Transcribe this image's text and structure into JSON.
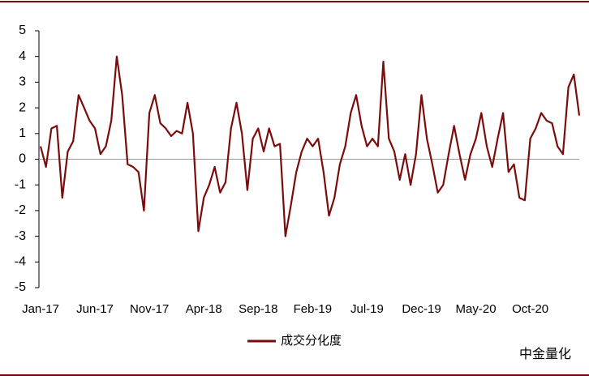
{
  "chart_data": {
    "type": "line",
    "categories": [
      "Jan-17",
      null,
      null,
      null,
      null,
      null,
      null,
      null,
      null,
      null,
      "Jun-17",
      null,
      null,
      null,
      null,
      null,
      null,
      null,
      null,
      null,
      "Nov-17",
      null,
      null,
      null,
      null,
      null,
      null,
      null,
      null,
      null,
      "Apr-18",
      null,
      null,
      null,
      null,
      null,
      null,
      null,
      null,
      null,
      "Sep-18",
      null,
      null,
      null,
      null,
      null,
      null,
      null,
      null,
      null,
      "Feb-19",
      null,
      null,
      null,
      null,
      null,
      null,
      null,
      null,
      null,
      "Jul-19",
      null,
      null,
      null,
      null,
      null,
      null,
      null,
      null,
      null,
      "Dec-19",
      null,
      null,
      null,
      null,
      null,
      null,
      null,
      null,
      null,
      "May-20",
      null,
      null,
      null,
      null,
      null,
      null,
      null,
      null,
      null,
      "Oct-20",
      null,
      null,
      null,
      null,
      null,
      null,
      null,
      null,
      null
    ],
    "series": [
      {
        "name": "成交分化度",
        "color": "#7b0c0c",
        "values": [
          0.5,
          -0.3,
          1.2,
          1.3,
          -1.5,
          0.3,
          0.7,
          2.5,
          2.0,
          1.5,
          1.2,
          0.2,
          0.5,
          1.5,
          4.0,
          2.5,
          -0.2,
          -0.3,
          -0.5,
          -2.0,
          1.8,
          2.5,
          1.4,
          1.2,
          0.9,
          1.1,
          1.0,
          2.2,
          1.0,
          -2.8,
          -1.5,
          -1.0,
          -0.3,
          -1.3,
          -0.9,
          1.2,
          2.2,
          1.0,
          -1.2,
          0.8,
          1.2,
          0.3,
          1.2,
          0.5,
          0.6,
          -3.0,
          -1.8,
          -0.5,
          0.3,
          0.8,
          0.5,
          0.8,
          -0.5,
          -2.2,
          -1.5,
          -0.2,
          0.5,
          1.8,
          2.5,
          1.3,
          0.5,
          0.8,
          0.5,
          3.8,
          0.8,
          0.3,
          -0.8,
          0.2,
          -1.0,
          0.2,
          2.5,
          0.8,
          -0.2,
          -1.3,
          -1.0,
          0.2,
          1.3,
          0.2,
          -0.8,
          0.2,
          0.8,
          1.8,
          0.5,
          -0.3,
          0.8,
          1.8,
          -0.5,
          -0.2,
          -1.5,
          -1.6,
          0.8,
          1.2,
          1.8,
          1.5,
          1.4,
          0.5,
          0.2,
          2.8,
          3.3,
          1.7
        ]
      }
    ],
    "ylim": [
      -5,
      5
    ],
    "yticks": [
      -5,
      -4,
      -3,
      -2,
      -1,
      0,
      1,
      2,
      3,
      4,
      5
    ],
    "watermark": "中金量化"
  }
}
